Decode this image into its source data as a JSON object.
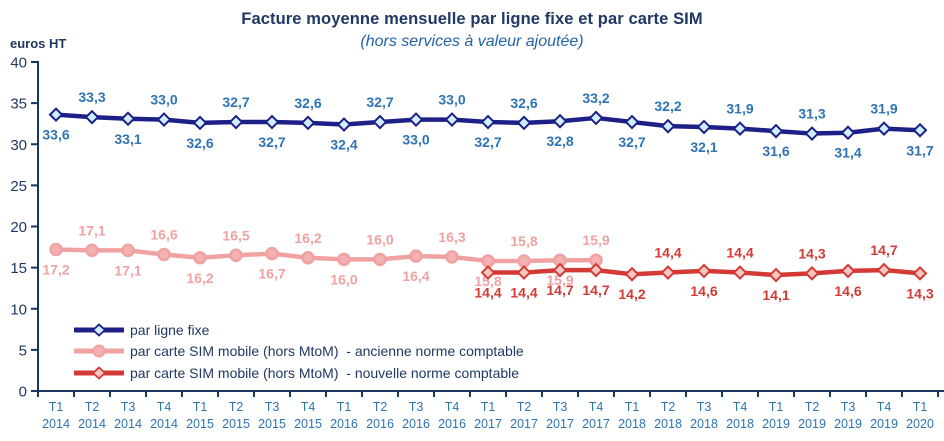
{
  "title": "Facture moyenne mensuelle par ligne fixe et par carte SIM",
  "subtitle": "(hors services à valeur ajoutée)",
  "y_axis_unit": "euros HT",
  "colors": {
    "title": "#1F3864",
    "subtitle": "#2364A8",
    "axis": "#17375E",
    "y_tick_label": "#1F3864",
    "x_tick_label": "#2E74B5"
  },
  "chart_data": {
    "type": "line",
    "title": "Facture moyenne mensuelle par ligne fixe et par carte SIM",
    "subtitle": "(hors services à valeur ajoutée)",
    "ylabel": "euros HT",
    "xlabel": "",
    "ylim": [
      0,
      40
    ],
    "y_ticks": [
      0,
      5,
      10,
      15,
      20,
      25,
      30,
      35,
      40
    ],
    "grid": false,
    "legend_position": "bottom-left",
    "categories": [
      "T1 2014",
      "T2 2014",
      "T3 2014",
      "T4 2014",
      "T1 2015",
      "T2 2015",
      "T3 2015",
      "T4 2015",
      "T1 2016",
      "T2 2016",
      "T3 2016",
      "T4 2016",
      "T1 2017",
      "T2 2017",
      "T3 2017",
      "T4 2017",
      "T1 2018",
      "T2 2018",
      "T3 2018",
      "T4 2018",
      "T1 2019",
      "T2 2019",
      "T3 2019",
      "T4 2019",
      "T1 2020"
    ],
    "series": [
      {
        "name": "par ligne fixe",
        "color": "#1E2088",
        "marker": "diamond",
        "marker_fill": "#CFEEFE",
        "label_color": "#2E74B5",
        "values": [
          33.6,
          33.3,
          33.1,
          33.0,
          32.6,
          32.7,
          32.7,
          32.6,
          32.4,
          32.7,
          33.0,
          33.0,
          32.7,
          32.6,
          32.8,
          33.2,
          32.7,
          32.2,
          32.1,
          31.9,
          31.6,
          31.3,
          31.4,
          31.9,
          31.7
        ],
        "labels": [
          "33,6",
          "33,3",
          "33,1",
          "33,0",
          "32,6",
          "32,7",
          "32,7",
          "32,6",
          "32,4",
          "32,7",
          "33,0",
          "33,0",
          "32,7",
          "32,6",
          "32,8",
          "33,2",
          "32,7",
          "32,2",
          "32,1",
          "31,9",
          "31,6",
          "31,3",
          "31,4",
          "31,9",
          "31,7"
        ],
        "label_side": [
          "below",
          "above",
          "below",
          "above",
          "below",
          "above",
          "below",
          "above",
          "below",
          "above",
          "below",
          "above",
          "below",
          "above",
          "below",
          "above",
          "below",
          "above",
          "below",
          "above",
          "below",
          "above",
          "below",
          "above",
          "below"
        ]
      },
      {
        "name": "par carte SIM mobile (hors MtoM)  - ancienne norme comptable",
        "color": "#F0A2A2",
        "marker": "circle",
        "marker_fill": "#F5B1B1",
        "label_color": "#F0A2A2",
        "values": [
          17.2,
          17.1,
          17.1,
          16.6,
          16.2,
          16.5,
          16.7,
          16.2,
          16.0,
          16.0,
          16.4,
          16.3,
          15.8,
          15.8,
          15.9,
          15.9,
          null,
          null,
          null,
          null,
          null,
          null,
          null,
          null,
          null
        ],
        "labels": [
          "17,2",
          "17,1",
          "17,1",
          "16,6",
          "16,2",
          "16,5",
          "16,7",
          "16,2",
          "16,0",
          "16,0",
          "16,4",
          "16,3",
          "15,8",
          "15,8",
          "15,9",
          "15,9",
          null,
          null,
          null,
          null,
          null,
          null,
          null,
          null,
          null
        ],
        "label_side": [
          "below",
          "above",
          "below",
          "above",
          "below",
          "above",
          "below",
          "above",
          "below",
          "above",
          "below",
          "above",
          "below",
          "above",
          "below",
          "above",
          null,
          null,
          null,
          null,
          null,
          null,
          null,
          null,
          null
        ]
      },
      {
        "name": "par carte SIM mobile (hors MtoM)  - nouvelle norme comptable",
        "color": "#D33A35",
        "marker": "diamond",
        "marker_fill": "#F5C6C2",
        "label_color": "#D33A35",
        "values": [
          null,
          null,
          null,
          null,
          null,
          null,
          null,
          null,
          null,
          null,
          null,
          null,
          14.4,
          14.4,
          14.7,
          14.7,
          14.2,
          14.4,
          14.6,
          14.4,
          14.1,
          14.3,
          14.6,
          14.7,
          14.3
        ],
        "labels": [
          null,
          null,
          null,
          null,
          null,
          null,
          null,
          null,
          null,
          null,
          null,
          null,
          "14,4",
          "14,4",
          "14,7",
          "14,7",
          "14,2",
          "14,4",
          "14,6",
          "14,4",
          "14,1",
          "14,3",
          "14,6",
          "14,7",
          "14,3"
        ],
        "label_side": [
          null,
          null,
          null,
          null,
          null,
          null,
          null,
          null,
          null,
          null,
          null,
          null,
          "below",
          "below",
          "below",
          "below",
          "below",
          "above",
          "below",
          "above",
          "below",
          "above",
          "below",
          "above",
          "below"
        ]
      }
    ]
  }
}
